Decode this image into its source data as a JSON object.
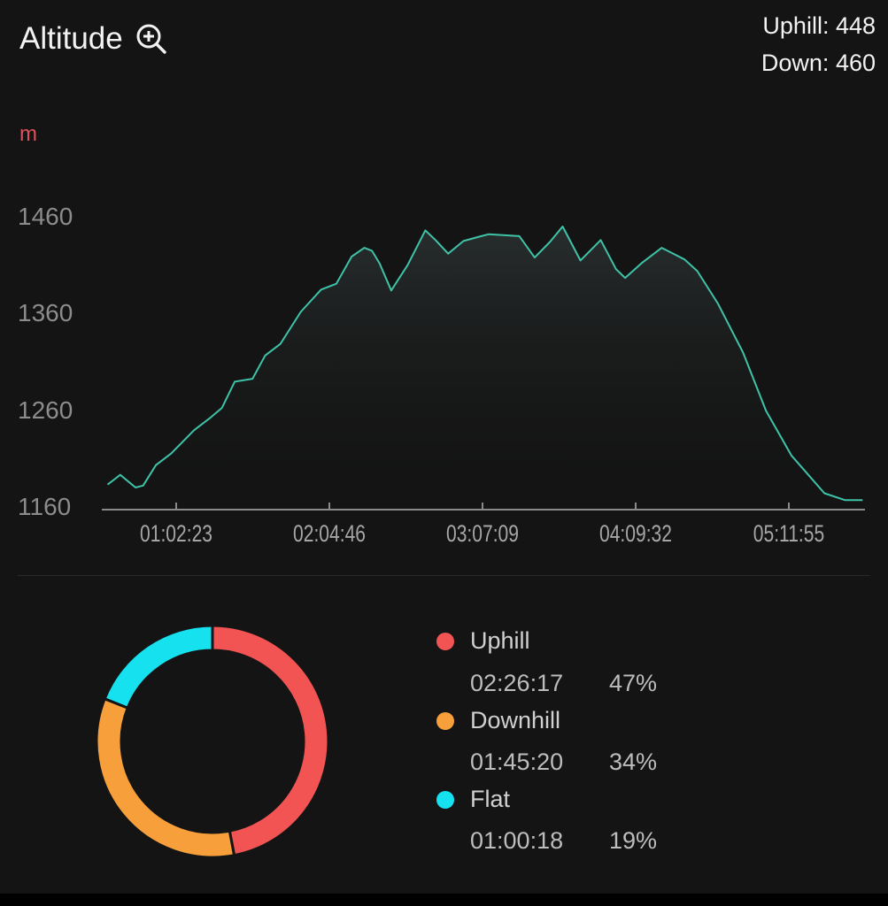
{
  "header": {
    "title": "Altitude",
    "zoom_icon": "zoom-in-icon",
    "uphill_text": "Uphill: 448",
    "down_text": "Down: 460"
  },
  "chart_data": [
    {
      "type": "area",
      "title": "Altitude",
      "ylabel": "m",
      "xlabel": "",
      "ylim": [
        1160,
        1460
      ],
      "yticks": [
        "1460",
        "1360",
        "1260",
        "1160"
      ],
      "xticks": [
        "01:02:23",
        "02:04:46",
        "03:07:09",
        "04:09:32",
        "05:11:55"
      ],
      "xlim": [
        "00:32:05",
        "05:42:56"
      ],
      "grid": false,
      "line_color": "#3fc3a8",
      "points": [
        [
          "00:34:26",
          1184
        ],
        [
          "00:39:36",
          1194
        ],
        [
          "00:45:49",
          1181
        ],
        [
          "00:48:55",
          1183
        ],
        [
          "00:54:06",
          1204
        ],
        [
          "01:00:19",
          1216
        ],
        [
          "01:09:38",
          1240
        ],
        [
          "01:15:51",
          1252
        ],
        [
          "01:21:01",
          1263
        ],
        [
          "01:26:12",
          1290
        ],
        [
          "01:33:27",
          1293
        ],
        [
          "01:38:37",
          1317
        ],
        [
          "01:44:50",
          1329
        ],
        [
          "01:53:07",
          1362
        ],
        [
          "02:01:24",
          1385
        ],
        [
          "02:07:37",
          1391
        ],
        [
          "02:13:50",
          1419
        ],
        [
          "02:19:00",
          1428
        ],
        [
          "02:22:07",
          1425
        ],
        [
          "02:25:13",
          1412
        ],
        [
          "02:29:59",
          1384
        ],
        [
          "02:36:36",
          1410
        ],
        [
          "02:43:51",
          1446
        ],
        [
          "02:48:00",
          1436
        ],
        [
          "02:53:10",
          1422
        ],
        [
          "02:59:23",
          1435
        ],
        [
          "03:06:38",
          1440
        ],
        [
          "03:09:44",
          1442
        ],
        [
          "03:22:10",
          1440
        ],
        [
          "03:28:23",
          1418
        ],
        [
          "03:34:35",
          1434
        ],
        [
          "03:39:46",
          1450
        ],
        [
          "03:47:01",
          1415
        ],
        [
          "03:55:18",
          1436
        ],
        [
          "04:01:31",
          1406
        ],
        [
          "04:05:15",
          1397
        ],
        [
          "04:11:52",
          1412
        ],
        [
          "04:20:09",
          1428
        ],
        [
          "04:29:28",
          1416
        ],
        [
          "04:34:39",
          1404
        ],
        [
          "04:42:56",
          1371
        ],
        [
          "04:53:17",
          1320
        ],
        [
          "05:02:36",
          1260
        ],
        [
          "05:12:58",
          1214
        ],
        [
          "05:20:12",
          1193
        ],
        [
          "05:26:25",
          1175
        ],
        [
          "05:34:42",
          1168
        ],
        [
          "05:41:57",
          1168
        ]
      ]
    },
    {
      "type": "pie",
      "donut": true,
      "slices": [
        {
          "name": "Uphill",
          "time": "02:26:17",
          "percent": 47,
          "pct_label": "47%",
          "color": "#f25454"
        },
        {
          "name": "Downhill",
          "time": "01:45:20",
          "percent": 34,
          "pct_label": "34%",
          "color": "#f7a03b"
        },
        {
          "name": "Flat",
          "time": "01:00:18",
          "percent": 19,
          "pct_label": "19%",
          "color": "#16e2ef"
        }
      ]
    }
  ]
}
